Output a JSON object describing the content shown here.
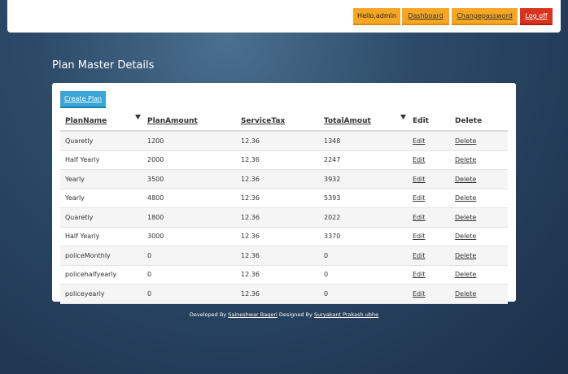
{
  "header": {
    "greeting": "Hello,admin",
    "links": [
      "Dashboard",
      "Changepassword",
      "Log off"
    ]
  },
  "page_title": "Plan Master Details",
  "create_button": "Create Plan",
  "table": {
    "columns": [
      "PlanName",
      "PlanAmount",
      "ServiceTax",
      "TotalAmout",
      "Edit",
      "Delete"
    ],
    "rows": [
      [
        "Quaretly",
        "1200",
        "12.36",
        "1348",
        "Edit",
        "Delete"
      ],
      [
        "Half Yearly",
        "2000",
        "12.36",
        "2247",
        "Edit",
        "Delete"
      ],
      [
        "Yearly",
        "3500",
        "12.36",
        "3932",
        "Edit",
        "Delete"
      ],
      [
        "Yearly",
        "4800",
        "12.36",
        "5393",
        "Edit",
        "Delete"
      ],
      [
        "Quaretly",
        "1800",
        "12.36",
        "2022",
        "Edit",
        "Delete"
      ],
      [
        "Half Yearly",
        "3000",
        "12.36",
        "3370",
        "Edit",
        "Delete"
      ],
      [
        "policeMonthly",
        "0",
        "12.36",
        "0",
        "Edit",
        "Delete"
      ],
      [
        "policehalfyearly",
        "0",
        "12.36",
        "0",
        "Edit",
        "Delete"
      ],
      [
        "policeyearly",
        "0",
        "12.36",
        "0",
        "Edit",
        "Delete"
      ]
    ]
  },
  "footer": {
    "developed_label": "Developed By",
    "developer": "Saineshwar Bageri",
    "designed_label": "Designed By",
    "designer": "Suryakant Prakash ubhe"
  }
}
